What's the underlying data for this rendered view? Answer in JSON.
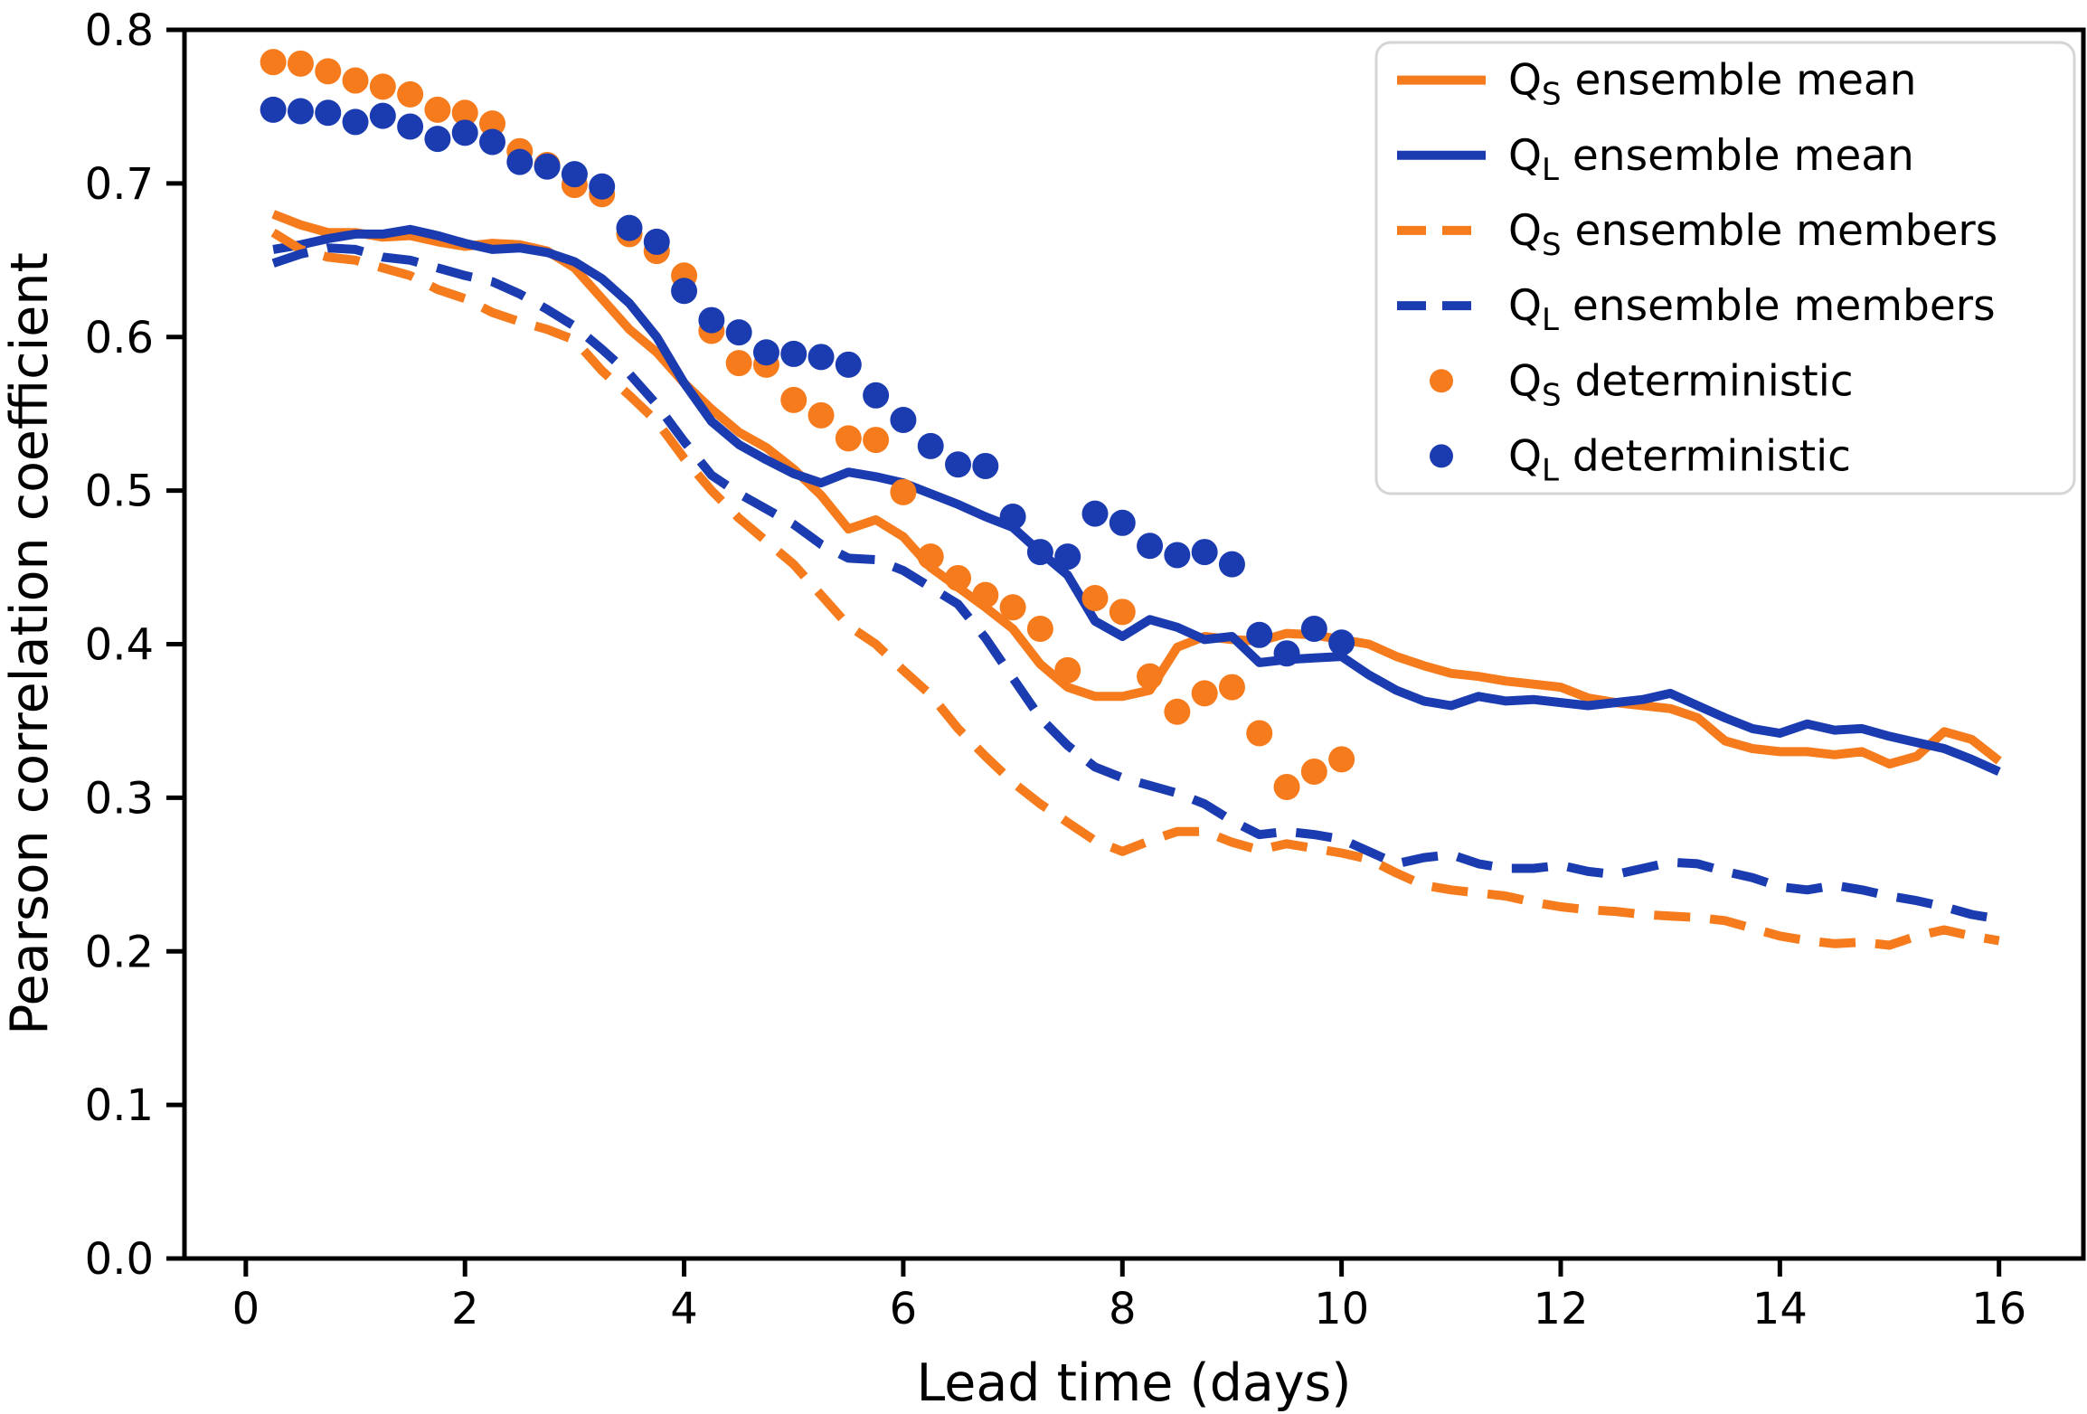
{
  "page": {
    "background_color": "#ffffff",
    "accent_orange": "#f57b1d",
    "accent_blue": "#1b3cb0"
  },
  "chart_data": {
    "type": "line",
    "title": "",
    "xlabel": "Lead time (days)",
    "ylabel": "Pearson correlation coefficient",
    "xlim": [
      -0.56,
      16.77
    ],
    "ylim": [
      0.0,
      0.8
    ],
    "grid": false,
    "legend_position": "upper right",
    "x_tick_values": [
      0,
      2,
      4,
      6,
      8,
      10,
      12,
      14,
      16
    ],
    "x_tick_labels": [
      "0",
      "2",
      "4",
      "6",
      "8",
      "10",
      "12",
      "14",
      "16"
    ],
    "y_tick_values": [
      0.0,
      0.1,
      0.2,
      0.3,
      0.4,
      0.5,
      0.6,
      0.7,
      0.8
    ],
    "y_tick_labels": [
      "0.0",
      "0.1",
      "0.2",
      "0.3",
      "0.4",
      "0.5",
      "0.6",
      "0.7",
      "0.8"
    ],
    "x": [
      0.25,
      0.5,
      0.75,
      1,
      1.25,
      1.5,
      1.75,
      2,
      2.25,
      2.5,
      2.75,
      3,
      3.25,
      3.5,
      3.75,
      4,
      4.25,
      4.5,
      4.75,
      5,
      5.25,
      5.5,
      5.75,
      6,
      6.25,
      6.5,
      6.75,
      7,
      7.25,
      7.5,
      7.75,
      8,
      8.25,
      8.5,
      8.75,
      9,
      9.25,
      9.5,
      9.75,
      10,
      10.25,
      10.5,
      10.75,
      11,
      11.25,
      11.5,
      11.75,
      12,
      12.25,
      12.5,
      12.75,
      13,
      13.25,
      13.5,
      13.75,
      14,
      14.25,
      14.5,
      14.75,
      15,
      15.25,
      15.5,
      15.75,
      16
    ],
    "series": [
      {
        "name": "qs-ensemble-mean",
        "label": "Q_S ensemble mean",
        "legend": {
          "base": "Q",
          "sub": "S",
          "rest": "ensemble mean"
        },
        "style": "solid",
        "color": "#f57b1d",
        "values": [
          0.68,
          0.673,
          0.668,
          0.668,
          0.665,
          0.666,
          0.662,
          0.659,
          0.661,
          0.66,
          0.656,
          0.645,
          0.625,
          0.605,
          0.59,
          0.57,
          0.553,
          0.538,
          0.528,
          0.514,
          0.497,
          0.475,
          0.481,
          0.47,
          0.45,
          0.437,
          0.424,
          0.41,
          0.387,
          0.372,
          0.366,
          0.366,
          0.37,
          0.398,
          0.405,
          0.403,
          0.402,
          0.407,
          0.406,
          0.403,
          0.4,
          0.392,
          0.386,
          0.381,
          0.379,
          0.376,
          0.374,
          0.372,
          0.365,
          0.362,
          0.36,
          0.358,
          0.352,
          0.337,
          0.332,
          0.33,
          0.33,
          0.328,
          0.33,
          0.322,
          0.327,
          0.343,
          0.338,
          0.324
        ]
      },
      {
        "name": "ql-ensemble-mean",
        "label": "Q_L ensemble mean",
        "legend": {
          "base": "Q",
          "sub": "L",
          "rest": "ensemble mean"
        },
        "style": "solid",
        "color": "#1b3cb0",
        "values": [
          0.657,
          0.66,
          0.664,
          0.667,
          0.667,
          0.67,
          0.666,
          0.661,
          0.657,
          0.658,
          0.655,
          0.649,
          0.638,
          0.622,
          0.6,
          0.57,
          0.545,
          0.53,
          0.52,
          0.511,
          0.505,
          0.512,
          0.509,
          0.505,
          0.498,
          0.491,
          0.483,
          0.476,
          0.46,
          0.445,
          0.415,
          0.405,
          0.416,
          0.411,
          0.403,
          0.405,
          0.388,
          0.39,
          0.391,
          0.392,
          0.38,
          0.37,
          0.363,
          0.36,
          0.366,
          0.363,
          0.364,
          0.362,
          0.36,
          0.362,
          0.364,
          0.368,
          0.36,
          0.352,
          0.345,
          0.342,
          0.348,
          0.344,
          0.345,
          0.34,
          0.336,
          0.332,
          0.325,
          0.317
        ]
      },
      {
        "name": "qs-ensemble-members",
        "label": "Q_S ensemble members",
        "legend": {
          "base": "Q",
          "sub": "S",
          "rest": "ensemble members"
        },
        "style": "dashed",
        "color": "#f57b1d",
        "values": [
          0.668,
          0.657,
          0.652,
          0.65,
          0.645,
          0.64,
          0.631,
          0.625,
          0.616,
          0.61,
          0.605,
          0.598,
          0.578,
          0.562,
          0.545,
          0.521,
          0.5,
          0.482,
          0.467,
          0.452,
          0.432,
          0.412,
          0.4,
          0.383,
          0.367,
          0.345,
          0.327,
          0.31,
          0.296,
          0.284,
          0.272,
          0.265,
          0.272,
          0.278,
          0.278,
          0.271,
          0.266,
          0.27,
          0.267,
          0.264,
          0.26,
          0.251,
          0.243,
          0.24,
          0.238,
          0.236,
          0.232,
          0.229,
          0.227,
          0.226,
          0.224,
          0.223,
          0.222,
          0.22,
          0.215,
          0.21,
          0.207,
          0.205,
          0.206,
          0.204,
          0.21,
          0.214,
          0.21,
          0.207
        ]
      },
      {
        "name": "ql-ensemble-members",
        "label": "Q_L ensemble members",
        "legend": {
          "base": "Q",
          "sub": "L",
          "rest": "ensemble members"
        },
        "style": "dashed",
        "color": "#1b3cb0",
        "values": [
          0.648,
          0.654,
          0.658,
          0.657,
          0.652,
          0.65,
          0.645,
          0.64,
          0.636,
          0.628,
          0.618,
          0.607,
          0.592,
          0.576,
          0.556,
          0.532,
          0.51,
          0.498,
          0.488,
          0.478,
          0.465,
          0.456,
          0.455,
          0.448,
          0.437,
          0.426,
          0.404,
          0.378,
          0.352,
          0.334,
          0.32,
          0.313,
          0.308,
          0.303,
          0.296,
          0.285,
          0.276,
          0.278,
          0.276,
          0.273,
          0.265,
          0.257,
          0.261,
          0.263,
          0.257,
          0.254,
          0.254,
          0.256,
          0.252,
          0.25,
          0.254,
          0.258,
          0.257,
          0.252,
          0.248,
          0.242,
          0.24,
          0.243,
          0.24,
          0.236,
          0.233,
          0.229,
          0.224,
          0.221
        ]
      },
      {
        "name": "qs-deterministic",
        "label": "Q_S deterministic",
        "legend": {
          "base": "Q",
          "sub": "S",
          "rest": "deterministic"
        },
        "style": "dots",
        "color": "#f57b1d",
        "values": [
          0.779,
          0.778,
          0.773,
          0.767,
          0.763,
          0.758,
          0.748,
          0.746,
          0.739,
          0.721,
          0.712,
          0.699,
          0.693,
          0.667,
          0.656,
          0.64,
          0.604,
          0.583,
          0.582,
          0.559,
          0.549,
          0.534,
          0.533,
          0.499,
          0.457,
          0.443,
          0.432,
          0.424,
          0.41,
          0.383,
          0.43,
          0.421,
          0.379,
          0.356,
          0.368,
          0.372,
          0.342,
          0.307,
          0.317,
          0.325
        ]
      },
      {
        "name": "ql-deterministic",
        "label": "Q_L deterministic",
        "legend": {
          "base": "Q",
          "sub": "L",
          "rest": "deterministic"
        },
        "style": "dots",
        "color": "#1b3cb0",
        "values": [
          0.748,
          0.747,
          0.746,
          0.74,
          0.744,
          0.737,
          0.729,
          0.733,
          0.727,
          0.714,
          0.711,
          0.706,
          0.698,
          0.671,
          0.662,
          0.63,
          0.611,
          0.603,
          0.59,
          0.589,
          0.587,
          0.582,
          0.562,
          0.546,
          0.529,
          0.517,
          0.516,
          0.483,
          0.46,
          0.457,
          0.485,
          0.479,
          0.464,
          0.458,
          0.46,
          0.452,
          0.406,
          0.394,
          0.41,
          0.401
        ]
      }
    ]
  }
}
